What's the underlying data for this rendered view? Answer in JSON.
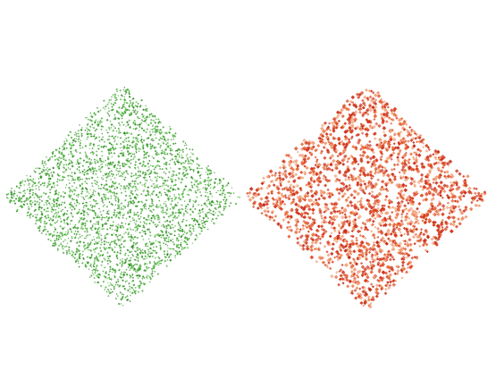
{
  "scene": {
    "background_color": "#ffffff",
    "shapes": [
      {
        "name": "green-diamond",
        "shape": "diamond",
        "palette": [
          "#3aa02a",
          "#55b845",
          "#2f8f22"
        ],
        "style": "fine-stipple"
      },
      {
        "name": "red-diamond",
        "shape": "diamond",
        "palette": [
          "#d93a1a",
          "#e86a3a",
          "#f2a27a",
          "#c8301a"
        ],
        "style": "coarse-stipple"
      }
    ]
  }
}
